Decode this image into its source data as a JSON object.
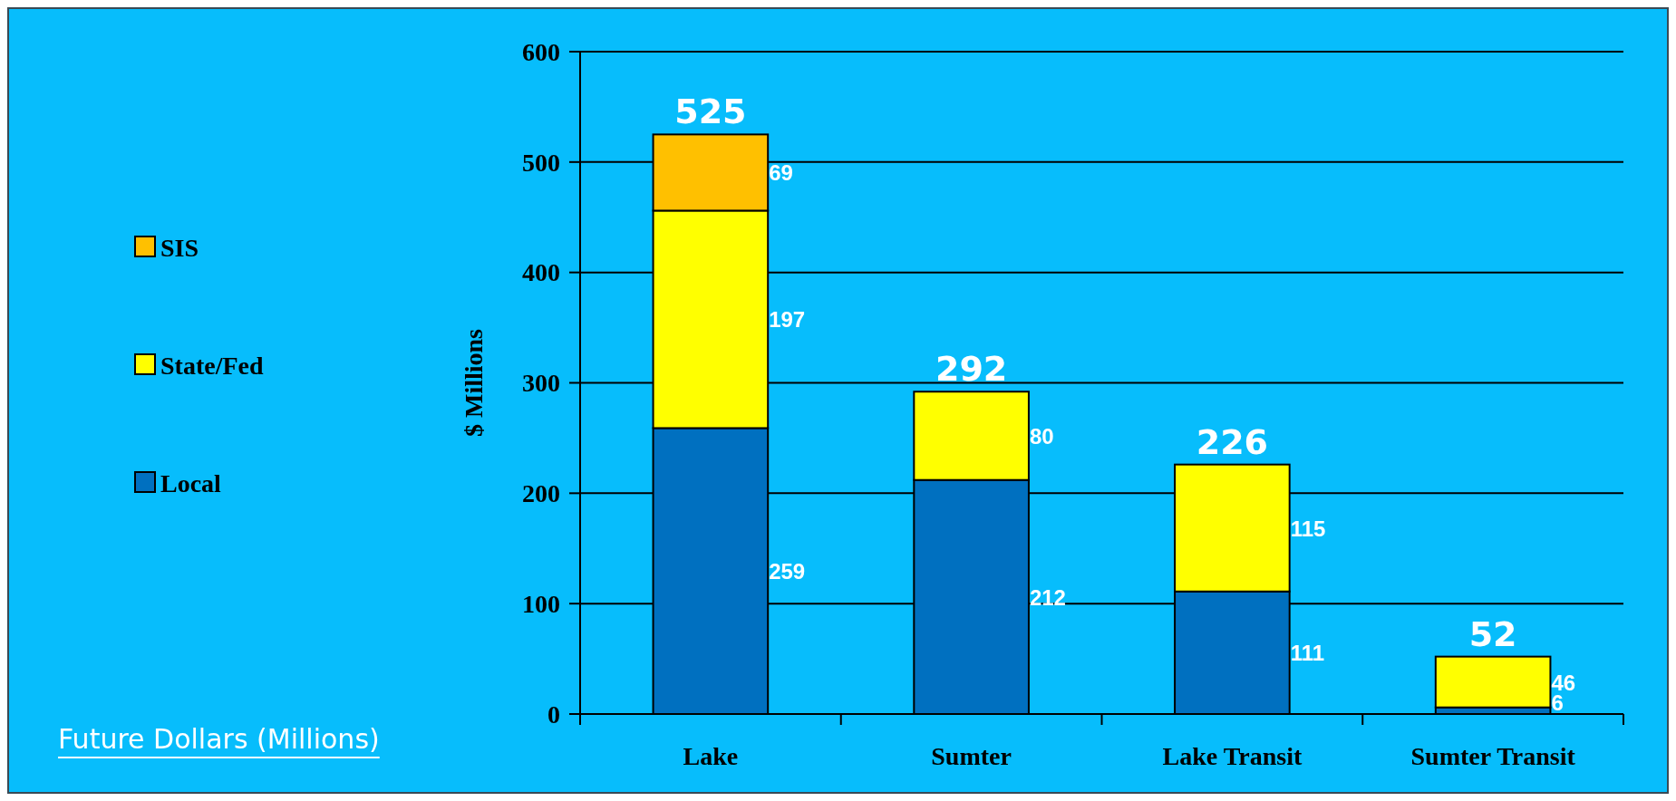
{
  "chart_data": {
    "type": "bar",
    "stacked": true,
    "ylabel": "$ Millions",
    "categories": [
      "Lake",
      "Sumter",
      "Lake Transit",
      "Sumter Transit"
    ],
    "series": [
      {
        "name": "Local",
        "color": "#0070c0",
        "values": [
          259,
          212,
          111,
          6
        ]
      },
      {
        "name": "State/Fed",
        "color": "#ffff00",
        "values": [
          197,
          80,
          115,
          46
        ]
      },
      {
        "name": "SIS",
        "color": "#ffc000",
        "values": [
          69,
          null,
          null,
          null
        ]
      }
    ],
    "totals": [
      "525",
      "292",
      "226",
      "52"
    ],
    "data_labels": true,
    "ylim": [
      0,
      600
    ],
    "yticks": [
      0,
      100,
      200,
      300,
      400,
      500,
      600
    ],
    "grid": "y",
    "legend": "left",
    "annotations": [
      "Future Dollars (Millions)"
    ]
  }
}
